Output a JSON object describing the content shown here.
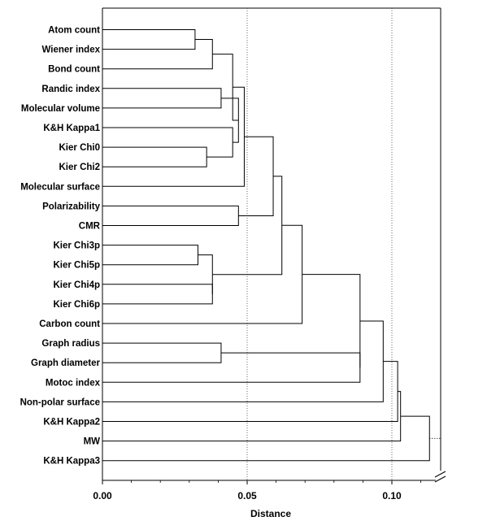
{
  "chart_data": {
    "type": "dendrogram",
    "xlabel": "Distance",
    "xlim": [
      0.0,
      0.115
    ],
    "x_ticks": [
      0.0,
      0.05,
      0.1
    ],
    "x_tick_labels": [
      "0.00",
      "0.05",
      "0.10"
    ],
    "grid_lines_x": [
      0.05,
      0.1
    ],
    "leaves": [
      "Atom count",
      "Wiener index",
      "Bond count",
      "Randic index",
      "Molecular volume",
      "K&H Kappa1",
      "Kier Chi0",
      "Kier Chi2",
      "Molecular surface",
      "Polarizability",
      "CMR",
      "Kier Chi3p",
      "Kier Chi5p",
      "Kier Chi4p",
      "Kier Chi6p",
      "Carbon count",
      "Graph radius",
      "Graph diameter",
      "Motoc index",
      "Non-polar surface",
      "K&H Kappa2",
      "MW",
      "K&H Kappa3"
    ],
    "merges": [
      {
        "id": "n1",
        "left": "L0",
        "right": "L1",
        "distance": 0.032
      },
      {
        "id": "n2",
        "left": "n1",
        "right": "L2",
        "distance": 0.038
      },
      {
        "id": "n3",
        "left": "L3",
        "right": "L4",
        "distance": 0.041
      },
      {
        "id": "n4",
        "left": "L6",
        "right": "L7",
        "distance": 0.036
      },
      {
        "id": "n5",
        "left": "L5",
        "right": "n4",
        "distance": 0.045
      },
      {
        "id": "n6",
        "left": "n3",
        "right": "n5",
        "distance": 0.047
      },
      {
        "id": "n7",
        "left": "n2",
        "right": "n6",
        "distance": 0.045
      },
      {
        "id": "n8",
        "left": "n7",
        "right": "L8",
        "distance": 0.049
      },
      {
        "id": "n9",
        "left": "L9",
        "right": "L10",
        "distance": 0.047
      },
      {
        "id": "n10",
        "left": "n8",
        "right": "n9",
        "distance": 0.059
      },
      {
        "id": "n11",
        "left": "L11",
        "right": "L12",
        "distance": 0.033
      },
      {
        "id": "n12",
        "left": "L13",
        "right": "L14",
        "distance": 0.038
      },
      {
        "id": "n13",
        "left": "n11",
        "right": "n12",
        "distance": 0.038
      },
      {
        "id": "n14",
        "left": "n10",
        "right": "n13",
        "distance": 0.062
      },
      {
        "id": "n15",
        "left": "n14",
        "right": "L15",
        "distance": 0.069
      },
      {
        "id": "n16",
        "left": "L16",
        "right": "L17",
        "distance": 0.041
      },
      {
        "id": "n17",
        "left": "n16",
        "right": "L18",
        "distance": 0.089
      },
      {
        "id": "n18",
        "left": "n15",
        "right": "n17",
        "distance": 0.089
      },
      {
        "id": "n19",
        "left": "n18",
        "right": "L19",
        "distance": 0.097
      },
      {
        "id": "n20",
        "left": "n19",
        "right": "L20",
        "distance": 0.102
      },
      {
        "id": "n21",
        "left": "n20",
        "right": "L21",
        "distance": 0.103
      },
      {
        "id": "n22",
        "left": "n21",
        "right": "L22",
        "distance": 0.113
      }
    ]
  }
}
